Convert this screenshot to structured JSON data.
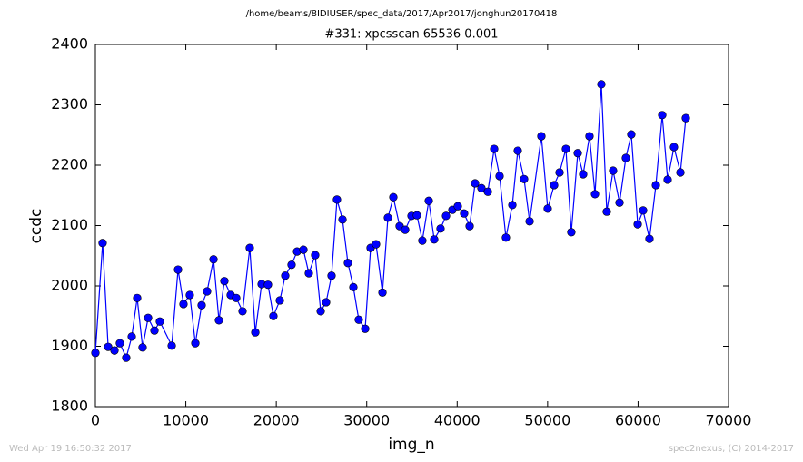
{
  "chart_data": {
    "type": "line",
    "title": "/home/beams/8IDIUSER/spec_data/2017/Apr2017/jonghun20170418",
    "subtitle": "#331: xpcsscan 65536 0.001",
    "x_label": "img_n",
    "y_label": "ccdc",
    "footer_left": "Wed Apr 19 16:50:32 2017",
    "footer_right": "spec2nexus, (C) 2014-2017",
    "color": "#0000ff",
    "marker": "o",
    "grid": false,
    "xlim": [
      0,
      70000
    ],
    "xticks": [
      0,
      10000,
      20000,
      30000,
      40000,
      50000,
      60000,
      70000
    ],
    "ylim": [
      1800,
      2400
    ],
    "yticks": [
      1800,
      1900,
      2000,
      2100,
      2200,
      2300,
      2400
    ],
    "x": [
      0,
      800,
      1410,
      2110,
      2710,
      3410,
      4020,
      4620,
      5220,
      5830,
      6530,
      7130,
      8440,
      9140,
      9740,
      10440,
      11050,
      11750,
      12350,
      13060,
      13660,
      14260,
      14960,
      15570,
      16270,
      17070,
      17680,
      18380,
      19080,
      19680,
      20390,
      20990,
      21690,
      22300,
      23000,
      23600,
      24300,
      24910,
      25510,
      26110,
      26710,
      27320,
      27920,
      28520,
      29120,
      29830,
      30430,
      31030,
      31740,
      32340,
      32940,
      33640,
      34250,
      34950,
      35550,
      36150,
      36860,
      37460,
      38160,
      38770,
      39470,
      40070,
      40770,
      41380,
      41980,
      42680,
      43390,
      44090,
      44690,
      45390,
      46100,
      46700,
      47400,
      48010,
      49310,
      50010,
      50720,
      51320,
      52020,
      52620,
      53330,
      53930,
      54630,
      55240,
      55940,
      56540,
      57240,
      57950,
      58650,
      59250,
      59960,
      60560,
      61260,
      61970,
      62670,
      63270,
      63970,
      64680,
      65280
    ],
    "values": [
      1889,
      2071,
      1899,
      1893,
      1905,
      1881,
      1916,
      1980,
      1898,
      1947,
      1926,
      1941,
      1901,
      2027,
      1970,
      1985,
      1905,
      1968,
      1991,
      2044,
      1943,
      2008,
      1985,
      1980,
      1958,
      2063,
      1923,
      2003,
      2002,
      1950,
      1976,
      2017,
      2035,
      2057,
      2060,
      2021,
      2051,
      1958,
      1973,
      2017,
      2143,
      2110,
      2038,
      1998,
      1944,
      1929,
      2063,
      2069,
      1989,
      2113,
      2147,
      2099,
      2093,
      2116,
      2117,
      2075,
      2141,
      2077,
      2095,
      2116,
      2126,
      2132,
      2120,
      2099,
      2170,
      2162,
      2156,
      2227,
      2182,
      2080,
      2134,
      2224,
      2177,
      2107,
      2248,
      2128,
      2167,
      2188,
      2227,
      2089,
      2220,
      2185,
      2248,
      2152,
      2334,
      2123,
      2191,
      2138,
      2212,
      2251,
      2102,
      2125,
      2078,
      2167,
      2283,
      2176,
      2230,
      2188,
      2278
    ]
  }
}
